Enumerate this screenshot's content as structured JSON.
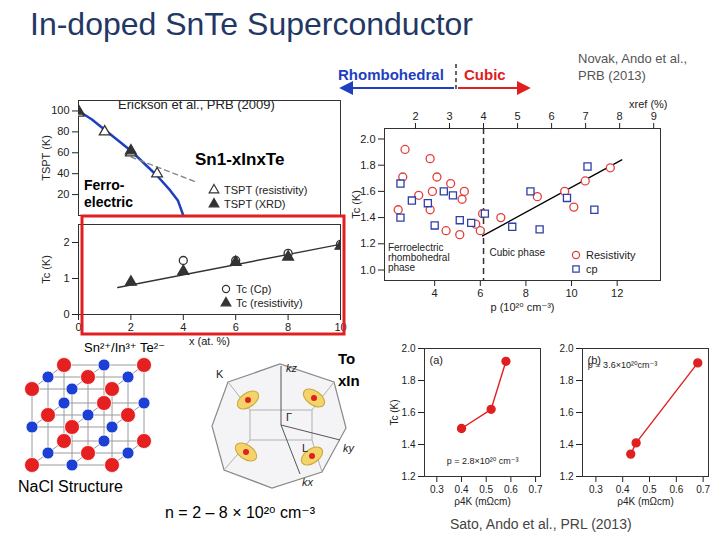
{
  "slide": {
    "title": "In-doped SnTe Superconductor",
    "header_left": "Rhombohedral",
    "header_right": "Cubic",
    "citations": [
      "Erickson et al., PRB (2009)",
      "Novak, Ando et al., PRB (2013)",
      "Sato, Ando et al., PRL (2013)"
    ],
    "formula": "Sn1-xInxTe",
    "region_label": "Ferro-electric",
    "crystal_ions": "Sn²⁺/In³⁺ Te²⁻",
    "crystal_caption": "NaCl Structure",
    "bz_labels": [
      "K",
      "L",
      "Γ",
      "kx",
      "ky",
      "kz"
    ],
    "carrier_density": "n = 2 – 8 × 10²⁰ cm⁻³",
    "fragments": [
      "To",
      "xIn"
    ]
  },
  "chart_data": [
    {
      "type": "line",
      "ylabel": "TSPT (K)",
      "xlim": [
        0,
        10
      ],
      "ylim": [
        0,
        110
      ],
      "yticks": [
        20,
        40,
        60,
        80,
        100
      ],
      "tick_labels": "y",
      "legend": "bottom-right",
      "series": [
        {
          "type": "line",
          "color": "#1f3fbf",
          "x": [
            0,
            0.5,
            1,
            1.5,
            2,
            2.5,
            3,
            3.5,
            3.8,
            4.0
          ],
          "values": [
            100,
            92,
            82,
            72,
            62,
            50,
            38,
            24,
            14,
            0
          ]
        },
        {
          "type": "line",
          "color": "#888888",
          "line_style": "dashed",
          "x": [
            2,
            4.5
          ],
          "values": [
            56,
            32
          ]
        },
        {
          "name": "TSPT (resistivity)",
          "type": "scatter",
          "marker": "triangle-open",
          "color": "#333333",
          "x": [
            0,
            1,
            2,
            3
          ],
          "values": [
            98,
            80,
            60,
            40
          ]
        },
        {
          "name": "TSPT (XRD)",
          "type": "scatter",
          "marker": "triangle",
          "color": "#333333",
          "x": [
            0,
            2
          ],
          "values": [
            100,
            62
          ]
        }
      ]
    },
    {
      "type": "scatter",
      "xlabel": "x (at. %)",
      "ylabel": "Tc (K)",
      "xlim": [
        0,
        10
      ],
      "ylim": [
        0,
        2.5
      ],
      "xticks": [
        0,
        2,
        4,
        6,
        8,
        10
      ],
      "yticks": [
        0,
        1,
        2
      ],
      "legend": "bottom-right",
      "series": [
        {
          "type": "line",
          "color": "#333333",
          "x": [
            1.5,
            10
          ],
          "values": [
            0.75,
            1.95
          ]
        },
        {
          "name": "Tc (Cp)",
          "marker": "circle-open",
          "color": "#333333",
          "x": [
            4,
            6,
            8,
            10
          ],
          "values": [
            1.5,
            1.5,
            1.7,
            1.95
          ]
        },
        {
          "name": "Tc (resistivity)",
          "marker": "triangle",
          "color": "#333333",
          "x": [
            2,
            4,
            6,
            8,
            10
          ],
          "values": [
            0.9,
            1.2,
            1.45,
            1.6,
            1.9
          ]
        }
      ]
    },
    {
      "type": "scatter",
      "xlabel": "p (10²⁰ cm⁻³)",
      "ylabel": "Tc (K)",
      "x2label": "xref (%)",
      "xlim": [
        1.8,
        13.9
      ],
      "xticks": [
        4,
        6,
        8,
        10,
        12
      ],
      "x2lim": [
        1.09,
        9.2
      ],
      "x2ticks": [
        2,
        3,
        4,
        5,
        6,
        7,
        8,
        9
      ],
      "ylim": [
        0.92,
        2.08
      ],
      "yticks": [
        {
          "value": 1,
          "label": "1.0"
        },
        1.2,
        1.4,
        1.6,
        1.8,
        {
          "value": 2,
          "label": "2.0"
        }
      ],
      "legend": "bottom-right",
      "divider": {
        "x2": 4,
        "line_style": "dashed"
      },
      "annotations": [
        {
          "text": "Ferroelectric rhombohedral phase",
          "x": 1.95,
          "y": 1.2
        },
        {
          "text": "Cubic phase",
          "x": 6.4,
          "y": 1.16
        }
      ],
      "series": [
        {
          "type": "line",
          "color": "#000000",
          "x": [
            6.1,
            12.2
          ],
          "values": [
            1.26,
            1.84
          ]
        },
        {
          "name": "Resistivity",
          "marker": "circle-open",
          "color": "#e0413a",
          "x": [
            2.7,
            3.8,
            2.6,
            4.1,
            4.7,
            3.3,
            3.9,
            5.3,
            5.2,
            2.4,
            3.8,
            6.1,
            5.8,
            6.0,
            4.5,
            5.1,
            6.9,
            8.5,
            9.7,
            10.6,
            10.1,
            11.7
          ],
          "values": [
            1.92,
            1.85,
            1.71,
            1.71,
            1.66,
            1.57,
            1.6,
            1.6,
            1.54,
            1.46,
            1.46,
            1.43,
            1.35,
            1.3,
            1.3,
            1.27,
            1.4,
            1.56,
            1.6,
            1.68,
            1.48,
            1.78
          ]
        },
        {
          "name": "cp",
          "marker": "square-open",
          "color": "#2f3fa8",
          "x": [
            2.5,
            2.5,
            3.0,
            3.7,
            4.4,
            4.8,
            5.1,
            5.6,
            6.2,
            7.4,
            8.6,
            8.2,
            9.8,
            11.0,
            10.7,
            4.0
          ],
          "values": [
            1.66,
            1.4,
            1.53,
            1.51,
            1.6,
            1.57,
            1.38,
            1.36,
            1.43,
            1.33,
            1.31,
            1.6,
            1.55,
            1.46,
            1.79,
            1.34
          ]
        }
      ]
    },
    {
      "type": "line",
      "title": "(a)",
      "xlabel": "ρ4K (mΩcm)",
      "ylabel": "Tc (K)",
      "xlim": [
        0.25,
        0.72
      ],
      "xticks": [
        0.3,
        0.4,
        0.5,
        0.6,
        0.7
      ],
      "ylim": [
        1.2,
        2.0
      ],
      "yticks": [
        1.2,
        1.4,
        1.6,
        1.8,
        {
          "value": 2,
          "label": "2.0"
        }
      ],
      "annotations": [
        {
          "text": "p = 2.8×10²⁰ cm⁻³",
          "x": 0.34,
          "y": 1.32
        }
      ],
      "series": [
        {
          "type": "line",
          "marker": "circle",
          "color": "#e02020",
          "x": [
            0.4,
            0.52,
            0.58
          ],
          "values": [
            1.5,
            1.62,
            1.92
          ]
        }
      ]
    },
    {
      "type": "line",
      "title": "(b)",
      "xlabel": "ρ4K (mΩcm)",
      "xlim": [
        0.25,
        0.72
      ],
      "xticks": [
        0.3,
        0.4,
        0.5,
        0.6,
        0.7
      ],
      "ylim": [
        1.2,
        2.0
      ],
      "yticks": [
        1.2,
        1.4,
        1.6,
        1.8,
        {
          "value": 2,
          "label": "2.0"
        }
      ],
      "annotations": [
        {
          "text": "p = 3.6×10²⁰cm⁻³",
          "x": 0.27,
          "y": 1.92
        }
      ],
      "series": [
        {
          "type": "line",
          "marker": "circle",
          "color": "#e02020",
          "x": [
            0.43,
            0.45,
            0.68
          ],
          "values": [
            1.34,
            1.41,
            1.91
          ]
        }
      ]
    }
  ]
}
